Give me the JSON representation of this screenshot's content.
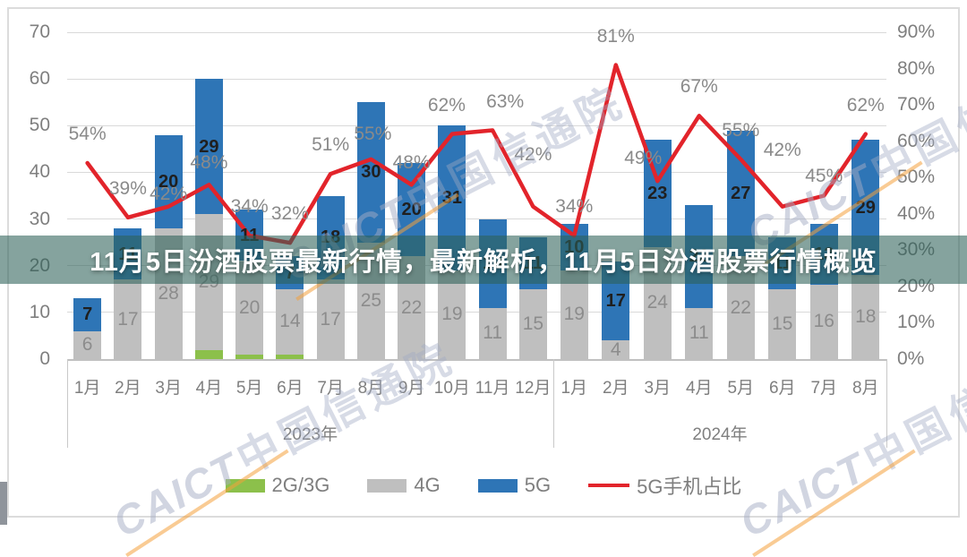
{
  "banner": {
    "title": "11月5日汾酒股票最新行情，最新解析，11月5日汾酒股票行情概览"
  },
  "watermark": {
    "org_en": "CAICT",
    "org_cn": "中国信通院"
  },
  "chart_data": {
    "type": "bar",
    "combo": "stacked-bar + line",
    "left_axis": {
      "ticks": [
        0,
        10,
        20,
        30,
        40,
        50,
        60,
        70
      ],
      "max": 70
    },
    "right_axis": {
      "ticks": [
        "0%",
        "10%",
        "20%",
        "30%",
        "40%",
        "50%",
        "60%",
        "70%",
        "80%",
        "90%"
      ],
      "max": 90
    },
    "groups": [
      {
        "label": "2023年",
        "count": 12
      },
      {
        "label": "2024年",
        "count": 8
      }
    ],
    "categories": [
      "1月",
      "2月",
      "3月",
      "4月",
      "5月",
      "6月",
      "7月",
      "8月",
      "9月",
      "10月",
      "11月",
      "12月",
      "1月",
      "2月",
      "3月",
      "4月",
      "5月",
      "6月",
      "7月",
      "8月"
    ],
    "series": [
      {
        "name": "2G/3G",
        "color": "#8CC04B",
        "values": [
          0,
          0,
          0,
          2,
          1,
          1,
          0,
          0,
          0,
          0,
          0,
          0,
          0,
          0,
          0,
          0,
          0,
          0,
          0,
          0
        ]
      },
      {
        "name": "4G",
        "color": "#BFBFBF",
        "values": [
          6,
          17,
          28,
          29,
          20,
          14,
          17,
          25,
          22,
          19,
          11,
          15,
          19,
          4,
          24,
          11,
          22,
          15,
          16,
          18
        ]
      },
      {
        "name": "5G",
        "color": "#2E75B6",
        "values": [
          7,
          11,
          20,
          29,
          11,
          7,
          18,
          30,
          20,
          31,
          19,
          11,
          10,
          17,
          23,
          22,
          27,
          11,
          13,
          29
        ]
      }
    ],
    "line": {
      "name": "5G手机占比",
      "color": "#E2242B",
      "values_pct": [
        54,
        39,
        42,
        48,
        34,
        32,
        51,
        55,
        48,
        62,
        63,
        42,
        34,
        81,
        49,
        67,
        55,
        42,
        45,
        62
      ]
    },
    "legend": [
      {
        "label": "2G/3G",
        "color": "#8CC04B",
        "type": "swatch"
      },
      {
        "label": "4G",
        "color": "#BFBFBF",
        "type": "swatch"
      },
      {
        "label": "5G",
        "color": "#2E75B6",
        "type": "swatch"
      },
      {
        "label": "5G手机占比",
        "color": "#E2242B",
        "type": "line"
      }
    ]
  }
}
